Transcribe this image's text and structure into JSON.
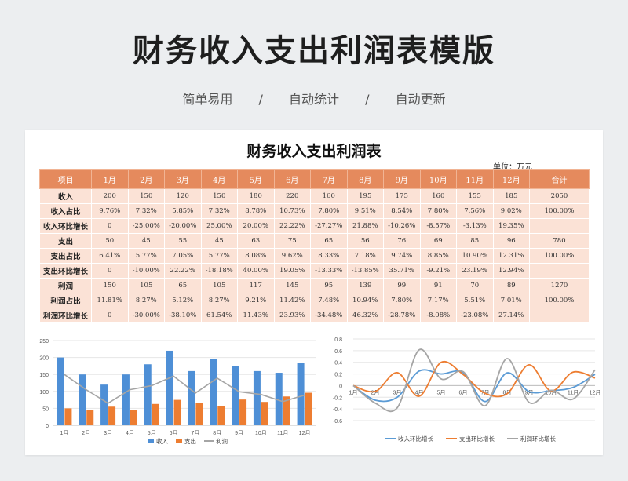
{
  "hero": {
    "title": "财务收入支出利润表模版",
    "features": [
      "简单易用",
      "/",
      "自动统计",
      "/",
      "自动更新"
    ]
  },
  "sheet": {
    "title": "财务收入支出利润表",
    "unit": "单位：万元",
    "headers": [
      "项目",
      "1月",
      "2月",
      "3月",
      "4月",
      "5月",
      "6月",
      "7月",
      "8月",
      "9月",
      "10月",
      "11月",
      "12月",
      "合计"
    ],
    "rows": [
      [
        "收入",
        "200",
        "150",
        "120",
        "150",
        "180",
        "220",
        "160",
        "195",
        "175",
        "160",
        "155",
        "185",
        "2050"
      ],
      [
        "收入占比",
        "9.76%",
        "7.32%",
        "5.85%",
        "7.32%",
        "8.78%",
        "10.73%",
        "7.80%",
        "9.51%",
        "8.54%",
        "7.80%",
        "7.56%",
        "9.02%",
        "100.00%"
      ],
      [
        "收入环比增长",
        "0",
        "-25.00%",
        "-20.00%",
        "25.00%",
        "20.00%",
        "22.22%",
        "-27.27%",
        "21.88%",
        "-10.26%",
        "-8.57%",
        "-3.13%",
        "19.35%",
        ""
      ],
      [
        "支出",
        "50",
        "45",
        "55",
        "45",
        "63",
        "75",
        "65",
        "56",
        "76",
        "69",
        "85",
        "96",
        "780"
      ],
      [
        "支出占比",
        "6.41%",
        "5.77%",
        "7.05%",
        "5.77%",
        "8.08%",
        "9.62%",
        "8.33%",
        "7.18%",
        "9.74%",
        "8.85%",
        "10.90%",
        "12.31%",
        "100.00%"
      ],
      [
        "支出环比增长",
        "0",
        "-10.00%",
        "22.22%",
        "-18.18%",
        "40.00%",
        "19.05%",
        "-13.33%",
        "-13.85%",
        "35.71%",
        "-9.21%",
        "23.19%",
        "12.94%",
        ""
      ],
      [
        "利润",
        "150",
        "105",
        "65",
        "105",
        "117",
        "145",
        "95",
        "139",
        "99",
        "91",
        "70",
        "89",
        "1270"
      ],
      [
        "利润占比",
        "11.81%",
        "8.27%",
        "5.12%",
        "8.27%",
        "9.21%",
        "11.42%",
        "7.48%",
        "10.94%",
        "7.80%",
        "7.17%",
        "5.51%",
        "7.01%",
        "100.00%"
      ],
      [
        "利润环比增长",
        "0",
        "-30.00%",
        "-38.10%",
        "61.54%",
        "11.43%",
        "23.93%",
        "-34.48%",
        "46.32%",
        "-28.78%",
        "-8.08%",
        "-23.08%",
        "27.14%",
        ""
      ]
    ]
  },
  "chart_data": [
    {
      "type": "bar",
      "categories": [
        "1月",
        "2月",
        "3月",
        "4月",
        "5月",
        "6月",
        "7月",
        "8月",
        "9月",
        "10月",
        "11月",
        "12月"
      ],
      "series": [
        {
          "name": "收入",
          "type": "bar",
          "color": "#4e8fd6",
          "values": [
            200,
            150,
            120,
            150,
            180,
            220,
            160,
            195,
            175,
            160,
            155,
            185
          ]
        },
        {
          "name": "支出",
          "type": "bar",
          "color": "#ed7d31",
          "values": [
            50,
            45,
            55,
            45,
            63,
            75,
            65,
            56,
            76,
            69,
            85,
            96
          ]
        },
        {
          "name": "利润",
          "type": "line",
          "color": "#a5a5a5",
          "values": [
            150,
            105,
            65,
            105,
            117,
            145,
            95,
            139,
            99,
            91,
            70,
            89
          ]
        }
      ],
      "ylim": [
        0,
        250
      ],
      "yticks": [
        0,
        50,
        100,
        150,
        200,
        250
      ],
      "grid": true,
      "legend": "bottom"
    },
    {
      "type": "line",
      "smooth": true,
      "categories": [
        "1月",
        "2月",
        "3月",
        "4月",
        "5月",
        "6月",
        "7月",
        "8月",
        "9月",
        "10月",
        "11月",
        "12月"
      ],
      "series": [
        {
          "name": "收入环比增长",
          "color": "#5b9bd5",
          "values": [
            0,
            -0.25,
            -0.2,
            0.25,
            0.2,
            0.2222,
            -0.2727,
            0.2188,
            -0.1026,
            -0.0857,
            -0.0313,
            0.1935
          ]
        },
        {
          "name": "支出环比增长",
          "color": "#ed7d31",
          "values": [
            0,
            -0.1,
            0.2222,
            -0.1818,
            0.4,
            0.1905,
            -0.1333,
            -0.1385,
            0.3571,
            -0.0921,
            0.2319,
            0.1294
          ]
        },
        {
          "name": "利润环比增长",
          "color": "#a5a5a5",
          "values": [
            0,
            -0.3,
            -0.381,
            0.6154,
            0.1143,
            0.2393,
            -0.3448,
            0.4632,
            -0.2878,
            -0.0808,
            -0.2308,
            0.2714
          ]
        }
      ],
      "ylim": [
        -0.6,
        0.8
      ],
      "yticks": [
        "0.8",
        "0.6",
        "0.4",
        "0.2",
        "0",
        "-0.2",
        "-0.4",
        "-0.6"
      ],
      "grid": true,
      "legend": "bottom"
    }
  ]
}
